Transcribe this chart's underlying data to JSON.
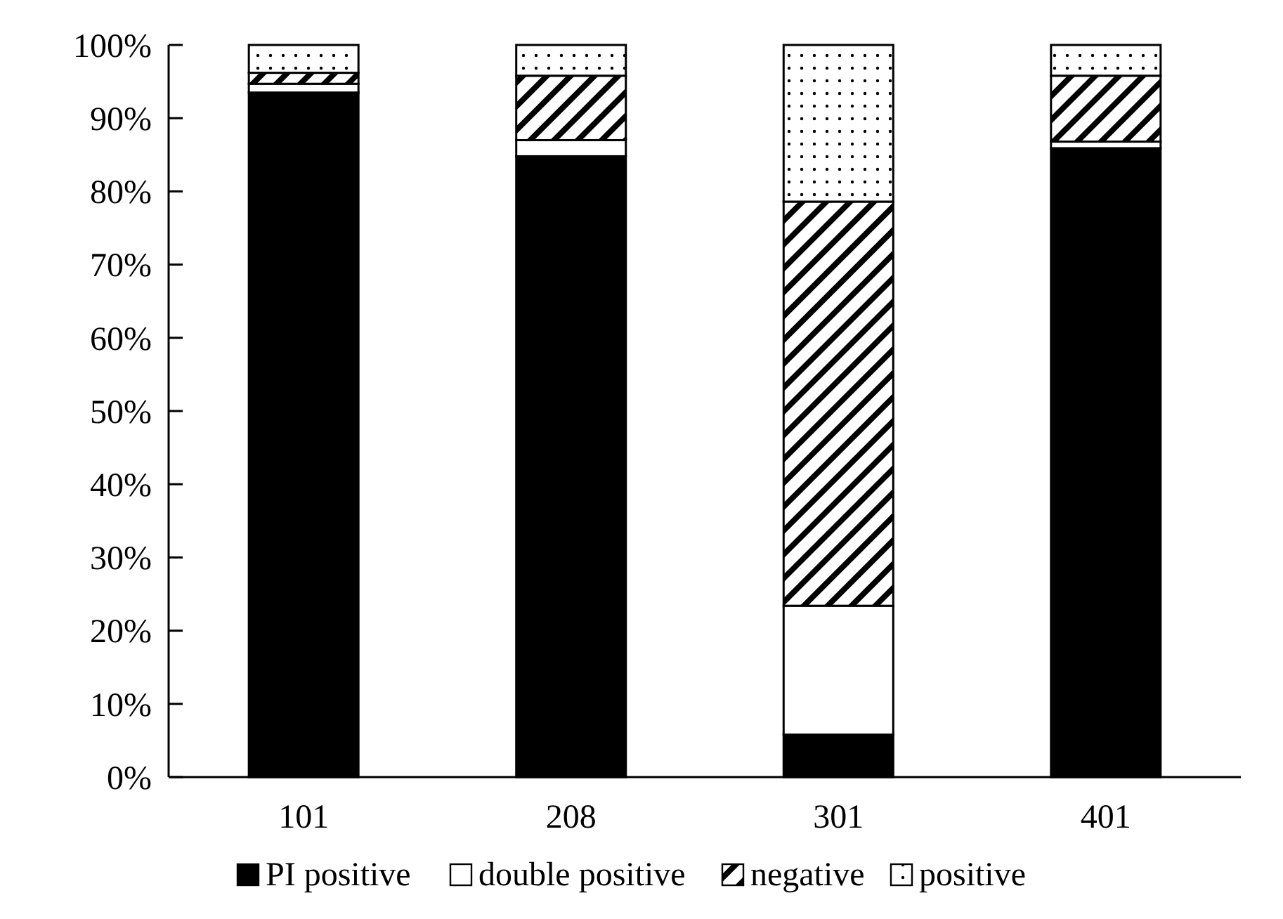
{
  "chart_data": {
    "type": "bar",
    "stacked": true,
    "categories": [
      "101",
      "208",
      "301",
      "401"
    ],
    "series": [
      {
        "name": "PI positive",
        "color": "#000000",
        "values": [
          93.5,
          84.8,
          5.8,
          85.9
        ]
      },
      {
        "name": "double positive",
        "color": "#ffffff",
        "values": [
          1.2,
          2.2,
          17.6,
          0.9
        ]
      },
      {
        "name": "negative",
        "color": "#000000",
        "values": [
          1.5,
          8.8,
          55.2,
          9.0
        ]
      },
      {
        "name": "positive",
        "color": "#000000",
        "values": [
          3.8,
          4.2,
          21.4,
          4.2
        ]
      }
    ],
    "ylim": [
      0,
      100
    ],
    "yticks": [
      {
        "value": 0,
        "label": "0%"
      },
      {
        "value": 10,
        "label": "10%"
      },
      {
        "value": 20,
        "label": "20%"
      },
      {
        "value": 30,
        "label": "30%"
      },
      {
        "value": 40,
        "label": "40%"
      },
      {
        "value": 50,
        "label": "50%"
      },
      {
        "value": 60,
        "label": "60%"
      },
      {
        "value": 70,
        "label": "70%"
      },
      {
        "value": 80,
        "label": "80%"
      },
      {
        "value": 90,
        "label": "90%"
      },
      {
        "value": 100,
        "label": "100%"
      }
    ],
    "grid": false,
    "legend": "bottom"
  }
}
